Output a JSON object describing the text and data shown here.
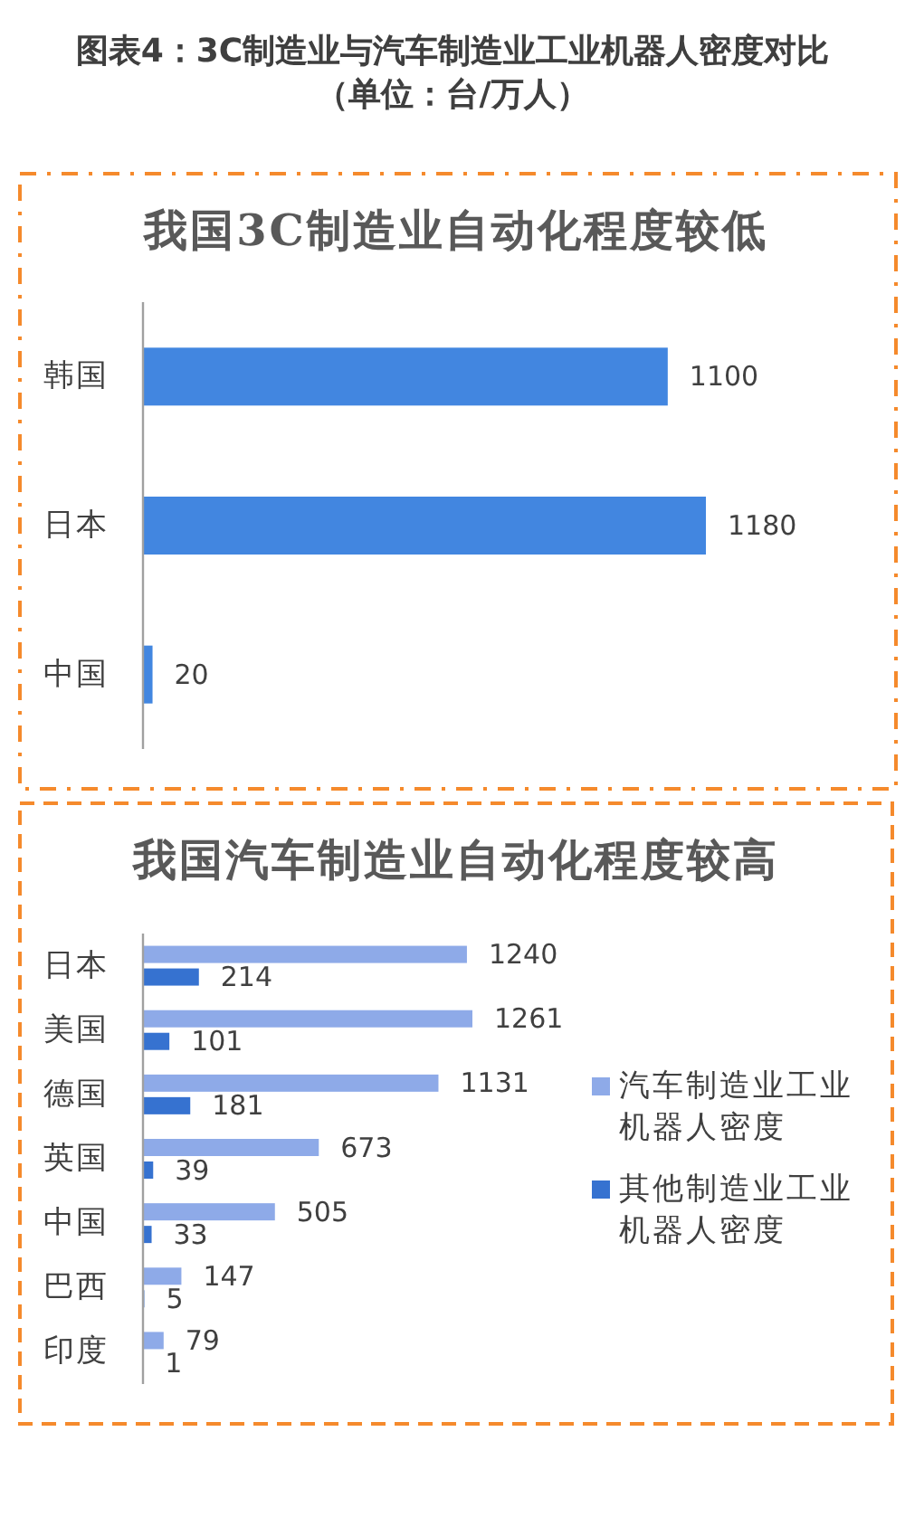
{
  "chart_data": [
    {
      "type": "bar",
      "orientation": "horizontal",
      "title": "图表4：3C制造业与汽车制造业工业机器人密度对比（单位：台/万人）",
      "subtitle": "我国3C制造业自动化程度较低",
      "categories": [
        "韩国",
        "日本",
        "中国"
      ],
      "values": [
        1100,
        1180,
        20
      ],
      "color": "#4286e0",
      "data_labels": true
    },
    {
      "type": "bar",
      "orientation": "horizontal",
      "title": "我国汽车制造业自动化程度较高",
      "categories": [
        "日本",
        "美国",
        "德国",
        "英国",
        "中国",
        "巴西",
        "印度"
      ],
      "series": [
        {
          "name": "汽车制造业工业机器人密度",
          "color": "#8eaae8",
          "values": [
            1240,
            1261,
            1131,
            673,
            505,
            147,
            79
          ]
        },
        {
          "name": "其他制造业工业机器人密度",
          "color": "#3672d0",
          "values": [
            214,
            101,
            181,
            39,
            33,
            5,
            1
          ]
        }
      ],
      "data_labels": true,
      "legend": "right"
    }
  ]
}
